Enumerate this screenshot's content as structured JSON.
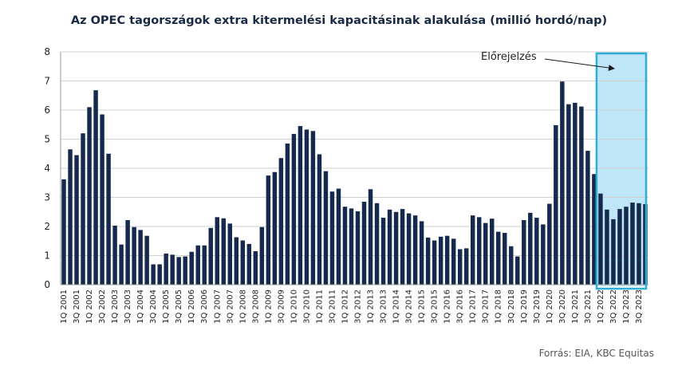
{
  "chart_data": {
    "type": "bar",
    "title": "Az OPEC tagországok extra kitermelési kapacitásinak alakulása (millió hordó/nap)",
    "ylim": [
      0,
      8
    ],
    "yticks": [
      0,
      1,
      2,
      3,
      4,
      5,
      6,
      7,
      8
    ],
    "grid": true,
    "bar_color": "#15294d",
    "forecast_fill": "#bfe6f7",
    "forecast_border": "#2eaed6",
    "forecast_label": "Előrejelzés",
    "forecast_start_index": 84,
    "categories": [
      "1Q 2001",
      "2Q 2001",
      "3Q 2001",
      "4Q 2001",
      "1Q 2002",
      "2Q 2002",
      "3Q 2002",
      "4Q 2002",
      "1Q 2003",
      "2Q 2003",
      "3Q 2003",
      "4Q 2003",
      "1Q 2004",
      "2Q 2004",
      "3Q 2004",
      "4Q 2004",
      "1Q 2005",
      "2Q 2005",
      "3Q 2005",
      "4Q 2005",
      "1Q 2006",
      "2Q 2006",
      "3Q 2006",
      "4Q 2006",
      "1Q 2007",
      "2Q 2007",
      "3Q 2007",
      "4Q 2007",
      "1Q 2008",
      "2Q 2008",
      "3Q 2008",
      "4Q 2008",
      "1Q 2009",
      "2Q 2009",
      "3Q 2009",
      "4Q 2009",
      "1Q 2010",
      "2Q 2010",
      "3Q 2010",
      "4Q 2010",
      "1Q 2011",
      "2Q 2011",
      "3Q 2011",
      "4Q 2011",
      "1Q 2012",
      "2Q 2012",
      "3Q 2012",
      "4Q 2012",
      "1Q 2013",
      "2Q 2013",
      "3Q 2013",
      "4Q 2013",
      "1Q 2014",
      "2Q 2014",
      "3Q 2014",
      "4Q 2014",
      "1Q 2015",
      "2Q 2015",
      "3Q 2015",
      "4Q 2015",
      "1Q 2016",
      "2Q 2016",
      "3Q 2016",
      "4Q 2016",
      "1Q 2017",
      "2Q 2017",
      "3Q 2017",
      "4Q 2017",
      "1Q 2018",
      "2Q 2018",
      "3Q 2018",
      "4Q 2018",
      "1Q 2019",
      "2Q 2019",
      "3Q 2019",
      "4Q 2019",
      "1Q 2020",
      "2Q 2020",
      "3Q 2020",
      "4Q 2020",
      "1Q 2021",
      "2Q 2021",
      "3Q 2021",
      "4Q 2021",
      "1Q 2022",
      "2Q 2022",
      "3Q 2022",
      "4Q 2022",
      "1Q 2023",
      "2Q 2023",
      "3Q 2023",
      "4Q 2023"
    ],
    "values": [
      3.62,
      4.65,
      4.45,
      5.2,
      6.1,
      6.68,
      5.85,
      4.5,
      2.03,
      1.38,
      2.22,
      1.98,
      1.88,
      1.68,
      0.7,
      0.7,
      1.07,
      1.03,
      0.95,
      0.97,
      1.13,
      1.35,
      1.35,
      1.95,
      2.32,
      2.28,
      2.1,
      1.63,
      1.52,
      1.4,
      1.15,
      1.98,
      3.75,
      3.87,
      4.35,
      4.85,
      5.18,
      5.45,
      5.33,
      5.28,
      4.48,
      3.9,
      3.2,
      3.3,
      2.68,
      2.62,
      2.52,
      2.85,
      3.28,
      2.8,
      2.3,
      2.58,
      2.5,
      2.6,
      2.45,
      2.38,
      2.18,
      1.62,
      1.52,
      1.65,
      1.68,
      1.58,
      1.22,
      1.25,
      2.38,
      2.32,
      2.12,
      2.27,
      1.82,
      1.78,
      1.32,
      0.97,
      2.22,
      2.47,
      2.3,
      2.07,
      2.78,
      5.48,
      6.98,
      6.2,
      6.25,
      6.12,
      4.6,
      3.8,
      3.13,
      2.58,
      2.25,
      2.6,
      2.68,
      2.82,
      2.8,
      2.77
    ],
    "x_tick_labels": [
      "1Q 2001",
      "3Q 2001",
      "1Q 2002",
      "3Q 2002",
      "1Q 2003",
      "3Q 2003",
      "1Q 2004",
      "3Q 2004",
      "1Q 2005",
      "3Q 2005",
      "1Q 2006",
      "3Q 2006",
      "1Q 2007",
      "3Q 2007",
      "1Q 2008",
      "3Q 2008",
      "1Q 2009",
      "3Q 2009",
      "1Q 2010",
      "3Q 2010",
      "1Q 2011",
      "3Q 2011",
      "1Q 2012",
      "3Q 2012",
      "1Q 2013",
      "3Q 2013",
      "1Q 2014",
      "3Q 2014",
      "1Q 2015",
      "3Q 2015",
      "1Q 2016",
      "3Q 2016",
      "1Q 2017",
      "3Q 2017",
      "1Q 2018",
      "3Q 2018",
      "1Q 2019",
      "3Q 2019",
      "1Q 2020",
      "3Q 2020",
      "1Q 2021",
      "3Q 2021",
      "1Q 2022",
      "3Q 2022",
      "1Q 2023",
      "3Q 2023"
    ],
    "source": "Forrás: EIA, KBC Equitas"
  }
}
